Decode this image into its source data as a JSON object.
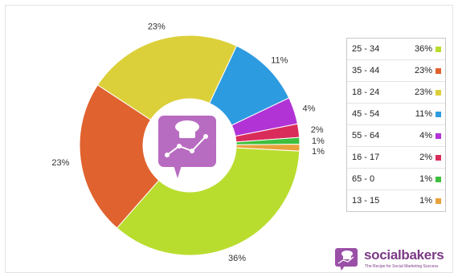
{
  "chart_data": {
    "type": "pie",
    "categories": [
      "25 - 34",
      "35 - 44",
      "18 - 24",
      "45 - 54",
      "55 - 64",
      "16 - 17",
      "65 - 0",
      "13 - 15"
    ],
    "values": [
      36,
      23,
      23,
      11,
      4,
      2,
      1,
      1
    ],
    "value_labels": [
      "36%",
      "23%",
      "23%",
      "11%",
      "4%",
      "2%",
      "1%",
      "1%"
    ],
    "colors": [
      "#b9dd2f",
      "#e0622e",
      "#dcd03a",
      "#2d9be0",
      "#b133d6",
      "#d92c5a",
      "#3fbf3f",
      "#e8a23a"
    ],
    "legend_position": "right"
  },
  "brand": {
    "name": "socialbakers",
    "tagline": "The Recipe for Social Marketing Success",
    "logo_icon": "chef-hat-chart-icon",
    "accent": "#7b3a86"
  }
}
